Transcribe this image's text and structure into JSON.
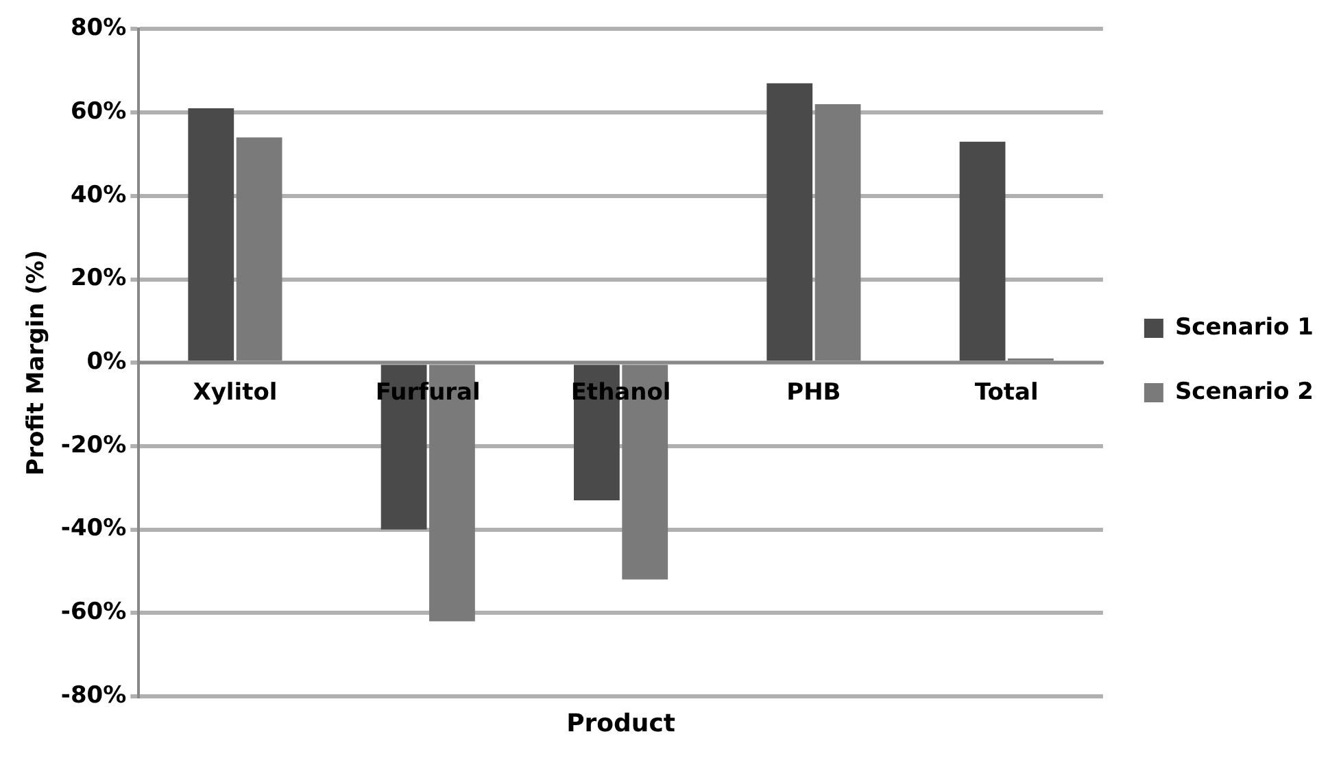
{
  "chart_data": {
    "type": "bar",
    "xlabel": "Product",
    "ylabel": "Profit Margin (%)",
    "categories": [
      "Xylitol",
      "Furfural",
      "Ethanol",
      "PHB",
      "Total"
    ],
    "series": [
      {
        "name": "Scenario 1",
        "color": "#4a4a4a",
        "values": [
          61,
          -40,
          -33,
          67,
          53
        ]
      },
      {
        "name": "Scenario 2",
        "color": "#7a7a7a",
        "values": [
          54,
          -62,
          -52,
          62,
          1
        ]
      }
    ],
    "ylim": [
      -80,
      80
    ],
    "yticks": [
      {
        "value": -80,
        "label": "-80%"
      },
      {
        "value": -60,
        "label": "-60%"
      },
      {
        "value": -40,
        "label": "-40%"
      },
      {
        "value": -20,
        "label": "-20%"
      },
      {
        "value": 0,
        "label": "0%"
      },
      {
        "value": 20,
        "label": "20%"
      },
      {
        "value": 40,
        "label": "40%"
      },
      {
        "value": 60,
        "label": "60%"
      },
      {
        "value": 80,
        "label": "80%"
      }
    ],
    "grid": "y",
    "legend": "right"
  }
}
